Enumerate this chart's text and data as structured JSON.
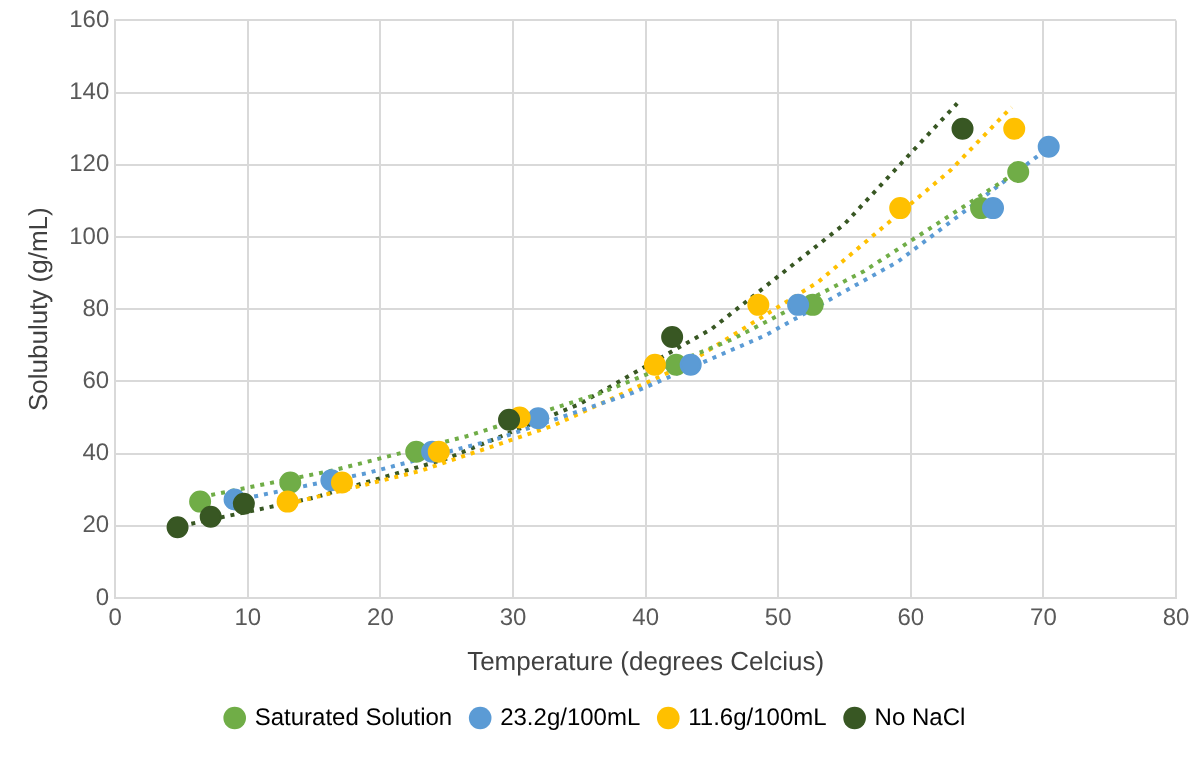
{
  "chart_data": {
    "type": "scatter",
    "xlabel": "Temperature (degrees Celcius)",
    "ylabel": "Solubuluty (g/mL)",
    "xlim": [
      0,
      80
    ],
    "xticks": [
      0,
      10,
      20,
      30,
      40,
      50,
      60,
      70,
      80
    ],
    "ylim": [
      0,
      160
    ],
    "yticks": [
      0,
      20,
      40,
      60,
      80,
      100,
      120,
      140,
      160
    ],
    "grid": true,
    "legend": "bottom",
    "marker": "circle",
    "series": [
      {
        "name": "Saturated Solution",
        "color": "#70ad47",
        "x": [
          6.4,
          13.2,
          22.7,
          42.3,
          52.6,
          65.3,
          68.1
        ],
        "values": [
          26.7,
          32,
          40.5,
          64.6,
          81.2,
          108,
          118
        ]
      },
      {
        "name": "23.2g/100mL",
        "color": "#5b9bd5",
        "x": [
          9.0,
          16.3,
          23.9,
          31.9,
          43.4,
          51.5,
          66.2,
          70.4
        ],
        "values": [
          27.3,
          32.6,
          40.5,
          49.8,
          64.6,
          81.2,
          108,
          125
        ]
      },
      {
        "name": "11.6g/100mL",
        "color": "#ffc000",
        "x": [
          13.0,
          17.1,
          24.4,
          30.5,
          40.7,
          48.5,
          59.2,
          67.8
        ],
        "values": [
          26.7,
          32,
          40.5,
          50,
          64.6,
          81.2,
          108,
          130
        ]
      },
      {
        "name": "No NaCl",
        "color": "#385723",
        "x": [
          4.7,
          7.2,
          9.7,
          29.7,
          42.0,
          63.9
        ],
        "values": [
          19.6,
          22.5,
          26.1,
          49.4,
          72.3,
          130
        ]
      },
      {
        "type": "line",
        "marker": "none",
        "line_style": "dotted",
        "color": "#70ad47",
        "x": [
          6.5,
          16.5,
          26.5,
          36.5,
          46.5,
          56.5,
          68
        ],
        "values": [
          28,
          35.4,
          44.8,
          56.6,
          71.6,
          90.6,
          118
        ]
      },
      {
        "type": "line",
        "marker": "none",
        "line_style": "dotted",
        "color": "#5b9bd5",
        "x": [
          9,
          19,
          29,
          39,
          49,
          59,
          70.5
        ],
        "values": [
          27,
          34.6,
          44.3,
          56.8,
          72.7,
          93.1,
          125
        ]
      },
      {
        "type": "line",
        "marker": "none",
        "line_style": "dotted",
        "color": "#ffc000",
        "x": [
          13,
          23,
          33,
          43,
          53,
          63,
          67.6
        ],
        "values": [
          26,
          35.2,
          47.7,
          64.6,
          87.5,
          118.5,
          136
        ]
      },
      {
        "type": "line",
        "marker": "none",
        "line_style": "dotted",
        "color": "#385723",
        "x": [
          5,
          15,
          25,
          35,
          45,
          55,
          63.5
        ],
        "values": [
          20,
          27.8,
          38.6,
          53.7,
          74.6,
          103.6,
          137
        ]
      }
    ]
  }
}
